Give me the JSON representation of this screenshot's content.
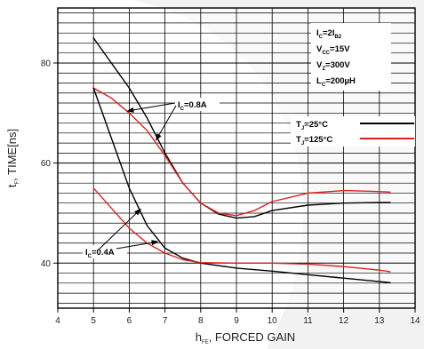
{
  "chart_data": {
    "type": "line",
    "xlabel": {
      "main": "h",
      "sub": "FE",
      "rest": ", FORCED GAIN"
    },
    "ylabel": {
      "main": "t",
      "sub": "F",
      "rest": ", TIME[ns]"
    },
    "xlim": [
      4,
      14
    ],
    "ylim": [
      31,
      91
    ],
    "x_ticks": [
      4,
      5,
      6,
      7,
      8,
      9,
      10,
      11,
      12,
      13,
      14
    ],
    "y_ticks": [
      40,
      60,
      80
    ],
    "grid": true,
    "conditions": [
      {
        "main": "I",
        "sub": "C",
        "rest": "=2I",
        "sub2": "B2"
      },
      {
        "main": "V",
        "sub": "CC",
        "rest": "=15V"
      },
      {
        "main": "V",
        "sub": "Z",
        "rest": "=300V"
      },
      {
        "main": "L",
        "sub": "C",
        "rest": "=200µH"
      }
    ],
    "legend": {
      "placement": "right",
      "entries": [
        {
          "main": "T",
          "sub": "J",
          "rest": "=25°C",
          "color": "#000000"
        },
        {
          "main": "T",
          "sub": "J",
          "rest": "=125°C",
          "color": "#e0201b"
        }
      ]
    },
    "annotations": [
      {
        "main": "I",
        "sub": "C",
        "rest": "=0.8A"
      },
      {
        "main": "I",
        "sub": "C",
        "rest": "=0.4A"
      }
    ],
    "series": [
      {
        "color": "#000000",
        "x": [
          5,
          5.5,
          6,
          6.5,
          7,
          7.5,
          8,
          8.5,
          9,
          9.5,
          10,
          11,
          12,
          13,
          13.3
        ],
        "y": [
          85,
          80,
          75,
          69,
          62,
          56,
          52,
          49.8,
          49,
          49.3,
          50.5,
          51.6,
          52,
          52.1,
          52.1
        ]
      },
      {
        "color": "#e0201b",
        "x": [
          5,
          5.5,
          6,
          6.5,
          7,
          7.5,
          8,
          8.5,
          9,
          9.5,
          10,
          11,
          12,
          13,
          13.3
        ],
        "y": [
          75,
          73,
          70,
          66.5,
          61.5,
          56,
          52,
          50,
          49.5,
          50.5,
          52.3,
          54,
          54.5,
          54.3,
          54.2
        ]
      },
      {
        "color": "#000000",
        "x": [
          5,
          5.5,
          6,
          6.5,
          7,
          7.5,
          8,
          9,
          10,
          11,
          12,
          13,
          13.3
        ],
        "y": [
          75,
          65,
          55,
          47.5,
          43,
          41,
          40,
          39,
          38.4,
          37.7,
          37,
          36.3,
          36.1
        ]
      },
      {
        "color": "#e0201b",
        "x": [
          5,
          5.5,
          6,
          6.5,
          7,
          7.5,
          8,
          9,
          10,
          11,
          12,
          13,
          13.3
        ],
        "y": [
          55,
          51,
          47,
          44,
          42,
          40.7,
          40.1,
          40,
          40,
          39.8,
          39.3,
          38.6,
          38.3
        ]
      }
    ]
  }
}
